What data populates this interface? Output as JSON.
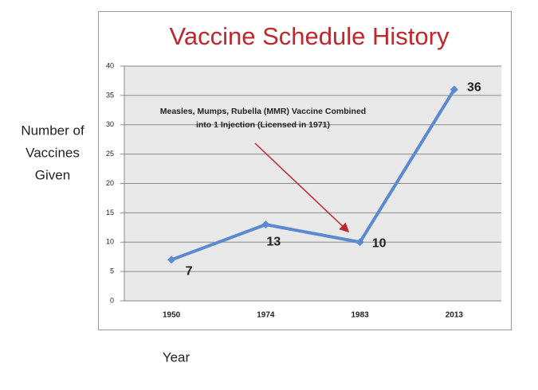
{
  "chart_data": {
    "type": "line",
    "title": "Vaccine Schedule History",
    "ylabel": [
      "Number of",
      "Vaccines",
      "Given"
    ],
    "xlabel": "Year",
    "annotation": [
      "Measles, Mumps, Rubella (MMR) Vaccine Combined",
      "into 1 Injection (Licensed in 1971)"
    ],
    "categories": [
      "1950",
      "1974",
      "1983",
      "2013"
    ],
    "values": [
      7,
      13,
      10,
      36
    ],
    "color": "#5b8ad0",
    "ylim": [
      0,
      40
    ],
    "yticks": [
      0,
      5,
      10,
      15,
      20,
      25,
      30,
      35,
      40
    ],
    "grid": true
  }
}
